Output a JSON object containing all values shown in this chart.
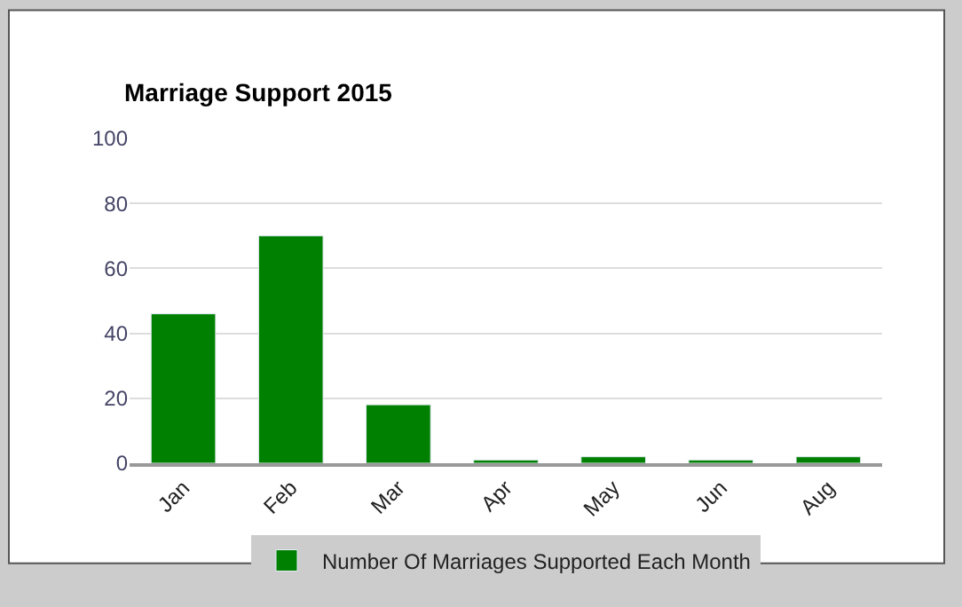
{
  "chart_data": {
    "type": "bar",
    "title": "Marriage Support 2015",
    "categories": [
      "Jan",
      "Feb",
      "Mar",
      "Apr",
      "May",
      "Jun",
      "Aug"
    ],
    "series": [
      {
        "name": "Number Of Marriages Supported Each Month",
        "color": "#008000",
        "values": [
          46,
          70,
          18,
          1,
          2,
          1,
          2
        ]
      }
    ],
    "ylim": [
      0,
      100
    ],
    "yticks": [
      0,
      20,
      40,
      60,
      80,
      100
    ],
    "grid": "y",
    "legend": "bottom"
  }
}
